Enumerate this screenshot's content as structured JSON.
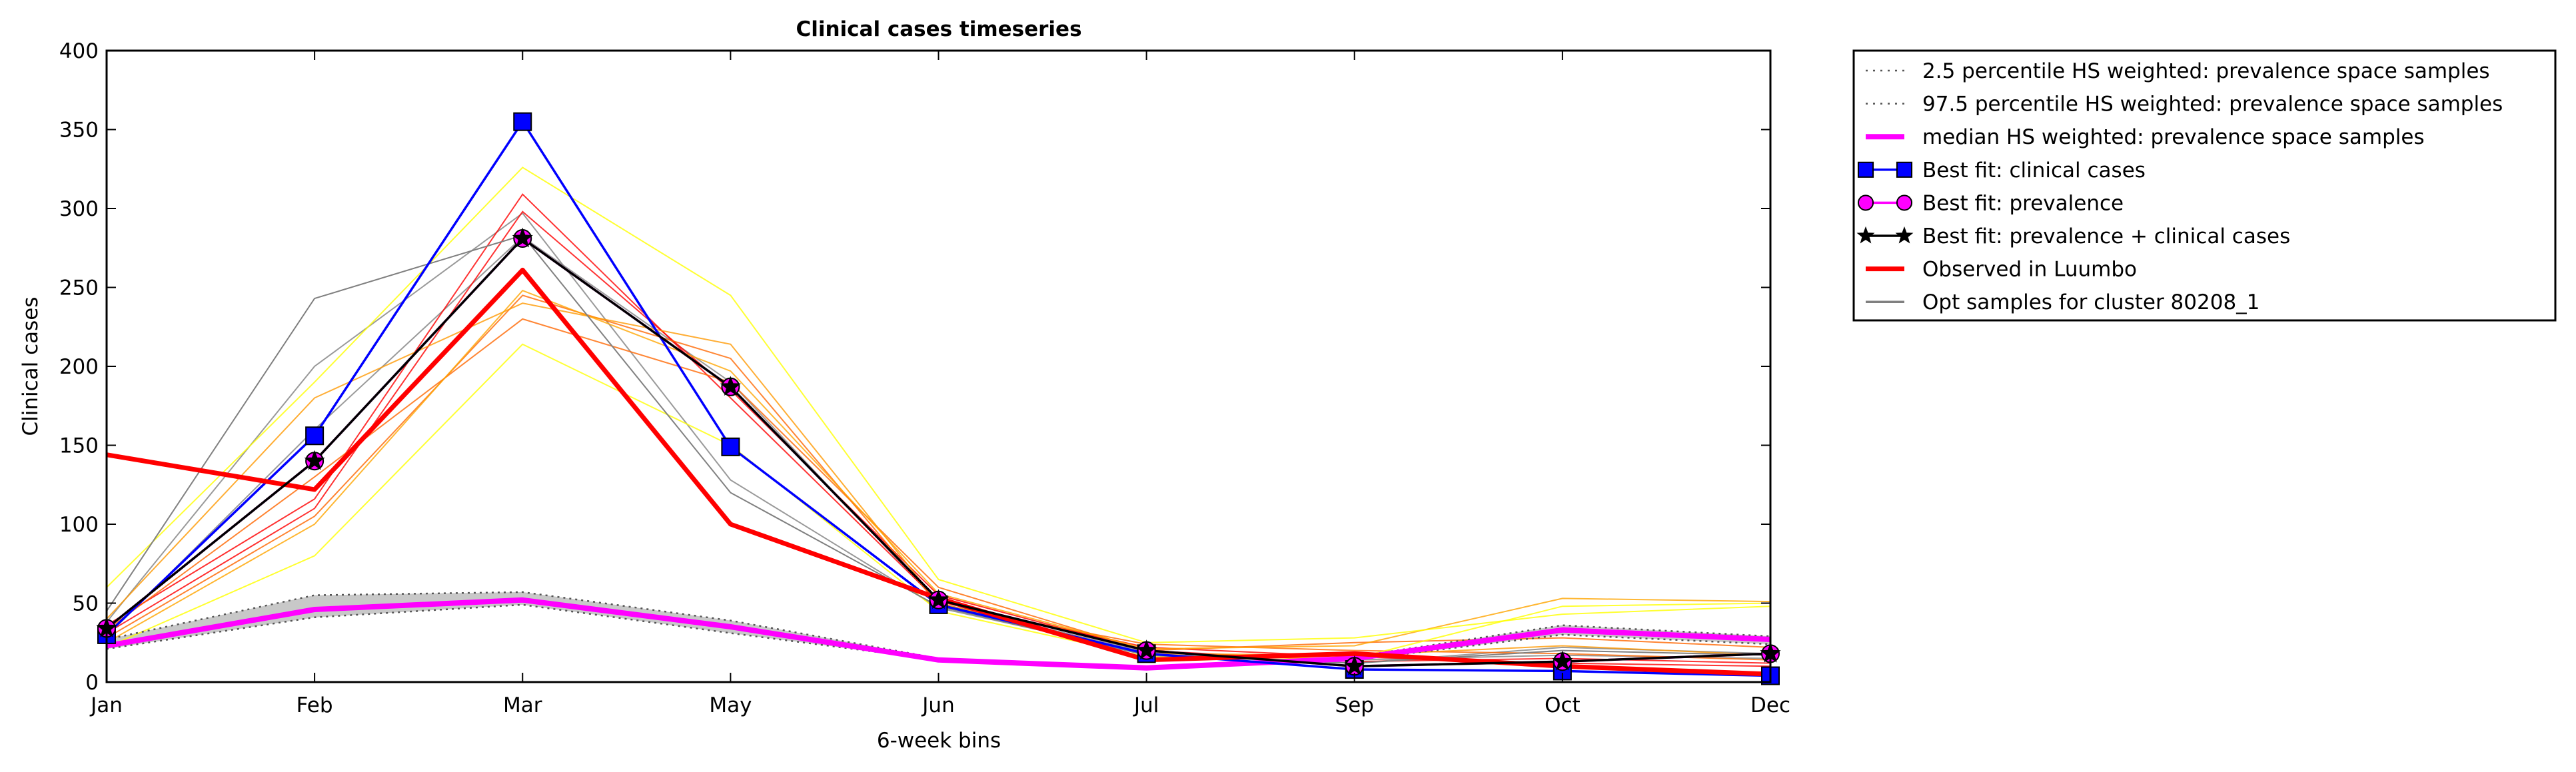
{
  "chart_data": {
    "type": "line",
    "title": "Clinical cases timeseries",
    "xlabel": "6-week bins",
    "ylabel": "Clinical cases",
    "categories": [
      "Jan",
      "Feb",
      "Mar",
      "May",
      "Jun",
      "Jul",
      "Sep",
      "Oct",
      "Dec"
    ],
    "ylim": [
      0,
      400
    ],
    "yticks": [
      0,
      50,
      100,
      150,
      200,
      250,
      300,
      350,
      400
    ],
    "grid": false,
    "legend_position": "outside-top-right",
    "series": [
      {
        "name": "2.5 percentile HS weighted: prevalence space samples",
        "style": "dotted",
        "color": "#555555",
        "values": [
          21,
          41,
          49,
          31,
          14,
          9,
          14,
          30,
          24
        ]
      },
      {
        "name": "97.5 percentile HS weighted: prevalence space samples",
        "style": "dotted",
        "color": "#555555",
        "values": [
          27,
          55,
          57,
          39,
          15,
          9,
          16,
          36,
          29
        ]
      },
      {
        "name": "median HS weighted: prevalence space samples",
        "style": "solid",
        "color": "#ff00ff",
        "values": [
          23,
          46,
          52,
          35,
          14,
          9,
          15,
          33,
          27
        ]
      },
      {
        "name": "Best fit: clinical cases",
        "style": "solid",
        "color": "#0000ff",
        "marker": "square",
        "values": [
          30,
          156,
          355,
          149,
          49,
          18,
          8,
          7,
          4
        ]
      },
      {
        "name": "Best fit: prevalence",
        "style": "solid",
        "color": "#ff00ff",
        "marker": "circle",
        "values": [
          34,
          140,
          281,
          187,
          52,
          20,
          10,
          13,
          18
        ]
      },
      {
        "name": "Best fit: prevalence + clinical cases",
        "style": "solid",
        "color": "#000000",
        "marker": "star",
        "values": [
          34,
          140,
          281,
          187,
          52,
          20,
          10,
          13,
          18
        ]
      },
      {
        "name": "Observed in Luumbo",
        "style": "solid",
        "color": "#ff0000",
        "values": [
          144,
          122,
          261,
          100,
          53,
          14,
          18,
          10,
          5
        ]
      },
      {
        "name": "Opt samples for cluster 80208_1",
        "style": "solid",
        "color": "#808080",
        "values": [
          45,
          243,
          283,
          120,
          48,
          17,
          12,
          20,
          17
        ]
      }
    ],
    "extra_samples": [
      {
        "color": "#808080",
        "values": [
          38,
          200,
          297,
          128,
          47,
          18,
          12,
          22,
          18
        ]
      },
      {
        "color": "#808080",
        "values": [
          29,
          160,
          282,
          190,
          50,
          19,
          14,
          17,
          15
        ]
      },
      {
        "color": "#ff0000",
        "values": [
          36,
          116,
          309,
          180,
          51,
          22,
          16,
          12,
          10
        ]
      },
      {
        "color": "#ff0000",
        "values": [
          31,
          110,
          298,
          185,
          55,
          20,
          13,
          15,
          12
        ]
      },
      {
        "color": "#ff6600",
        "values": [
          28,
          105,
          245,
          205,
          49,
          24,
          20,
          18,
          14
        ]
      },
      {
        "color": "#ff6600",
        "values": [
          33,
          130,
          230,
          190,
          60,
          20,
          25,
          28,
          22
        ]
      },
      {
        "color": "#ff9900",
        "values": [
          40,
          180,
          240,
          214,
          50,
          18,
          17,
          23,
          17
        ]
      },
      {
        "color": "#ffa500",
        "values": [
          25,
          100,
          248,
          197,
          56,
          21,
          23,
          53,
          51
        ]
      },
      {
        "color": "#ffff00",
        "values": [
          60,
          190,
          326,
          245,
          65,
          25,
          28,
          43,
          48
        ]
      },
      {
        "color": "#ffff00",
        "values": [
          22,
          80,
          214,
          150,
          45,
          16,
          15,
          48,
          50
        ]
      }
    ]
  }
}
